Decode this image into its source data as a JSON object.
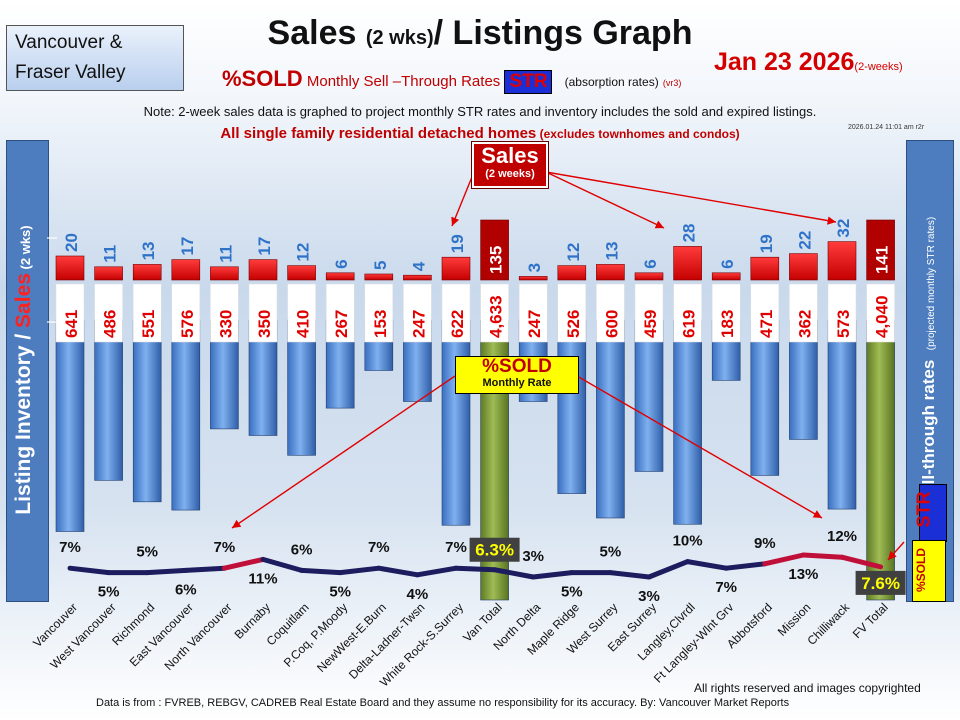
{
  "header": {
    "region_line1": "Vancouver &",
    "region_line2": "Fraser Valley",
    "title_main": "Sales ",
    "title_small": "(2 wks)",
    "title_end": "/ Listings Graph",
    "date": "Jan 23 2026",
    "date_suffix": "(2-weeks)",
    "subtitle_sold": "%SOLD",
    "subtitle_text": " Monthly Sell –Through Rates ",
    "subtitle_badge": "STR",
    "subtitle_after": "(absorption rates)",
    "subtitle_version": "(vr3)",
    "note": "Note: 2-week sales data is graphed to project monthly STR rates and inventory includes the sold and expired listings.",
    "timestamp": "2026.01.24 11:01 am r2r",
    "scope_main": "All single family residential detached homes",
    "scope_sub": " (excludes townhomes and condos)"
  },
  "side_labels": {
    "left_main": "Listing Inventory / ",
    "left_red": "Sales",
    "left_small": " (2  wks)",
    "right_main": "Sell-through rates",
    "right_small": "(projected monthly STR rates)",
    "str_badge": "STR",
    "sold_badge": "%SOLD"
  },
  "callouts": {
    "sales_line1": "Sales",
    "sales_line2": "(2 weeks)",
    "sold_line1": "%SOLD",
    "sold_line2": "Monthly Rate"
  },
  "footer": {
    "rights": "All rights reserved and  images copyrighted",
    "source": "Data is from : FVREB, REBGV, CADREB Real Estate Board and they assume no responsibility for its accuracy. By: Vancouver Market Reports"
  },
  "colors": {
    "sales_bar": "#ff0000",
    "sales_total_bar": "#b00000",
    "inventory_bar": "#4f86d6",
    "inventory_total_bar": "#7e9a35",
    "sales_label": "#2f73c9",
    "inventory_label": "#e00000",
    "str_line_low": "#1c1c5e",
    "str_line_high": "#c0103a"
  },
  "chart_data": {
    "type": "bar",
    "categories": [
      "Vancouver",
      "West Vancouver",
      "Richmond",
      "East Vancouver",
      "North Vancouver",
      "Burnaby",
      "Coquitlam",
      "P.Coq, P.Moody",
      "NewWest-E.Burn",
      "Delta-Ladner-Twsn",
      "White Rock-S.Surrey",
      "Van Total",
      "North Delta",
      "Maple Ridge",
      "West Surrey",
      "East Surrey",
      "Langley,Clvrdl",
      "Ft Langley-Wlnt Grv",
      "Abbotsford",
      "Mission",
      "Chilliwack",
      "FV Total"
    ],
    "series": [
      {
        "name": "Sales",
        "values": [
          20,
          11,
          13,
          17,
          11,
          17,
          12,
          6,
          5,
          4,
          19,
          135,
          3,
          12,
          13,
          6,
          28,
          6,
          19,
          22,
          32,
          141
        ]
      },
      {
        "name": "Listing Inventory",
        "values": [
          641,
          486,
          551,
          576,
          330,
          350,
          410,
          267,
          153,
          247,
          622,
          4633,
          247,
          526,
          600,
          459,
          619,
          183,
          471,
          362,
          573,
          4040
        ]
      },
      {
        "name": "%SOLD",
        "values": [
          7,
          5,
          5,
          6,
          7,
          11,
          6,
          5,
          7,
          4,
          7,
          6.3,
          3,
          5,
          5,
          3,
          10,
          7,
          9,
          13,
          12,
          7.6
        ]
      }
    ],
    "str_labels": [
      "7%",
      "5%",
      "5%",
      "6%",
      "7%",
      "11%",
      "6%",
      "5%",
      "7%",
      "4%",
      "7%",
      "6.3%",
      "3%",
      "5%",
      "5%",
      "3%",
      "10%",
      "7%",
      "9%",
      "13%",
      "12%",
      "7.6%"
    ],
    "sales_labels": [
      "20",
      "11",
      "13",
      "17",
      "11",
      "17",
      "12",
      "6",
      "5",
      "4",
      "19",
      "135",
      "3",
      "12",
      "13",
      "6",
      "28",
      "6",
      "19",
      "22",
      "32",
      "141"
    ],
    "inventory_labels": [
      "641",
      "486",
      "551",
      "576",
      "330",
      "350",
      "410",
      "267",
      "153",
      "247",
      "622",
      "4,633",
      "247",
      "526",
      "600",
      "459",
      "619",
      "183",
      "471",
      "362",
      "573",
      "4,040"
    ],
    "totals": [
      "Van Total",
      "FV Total"
    ]
  }
}
